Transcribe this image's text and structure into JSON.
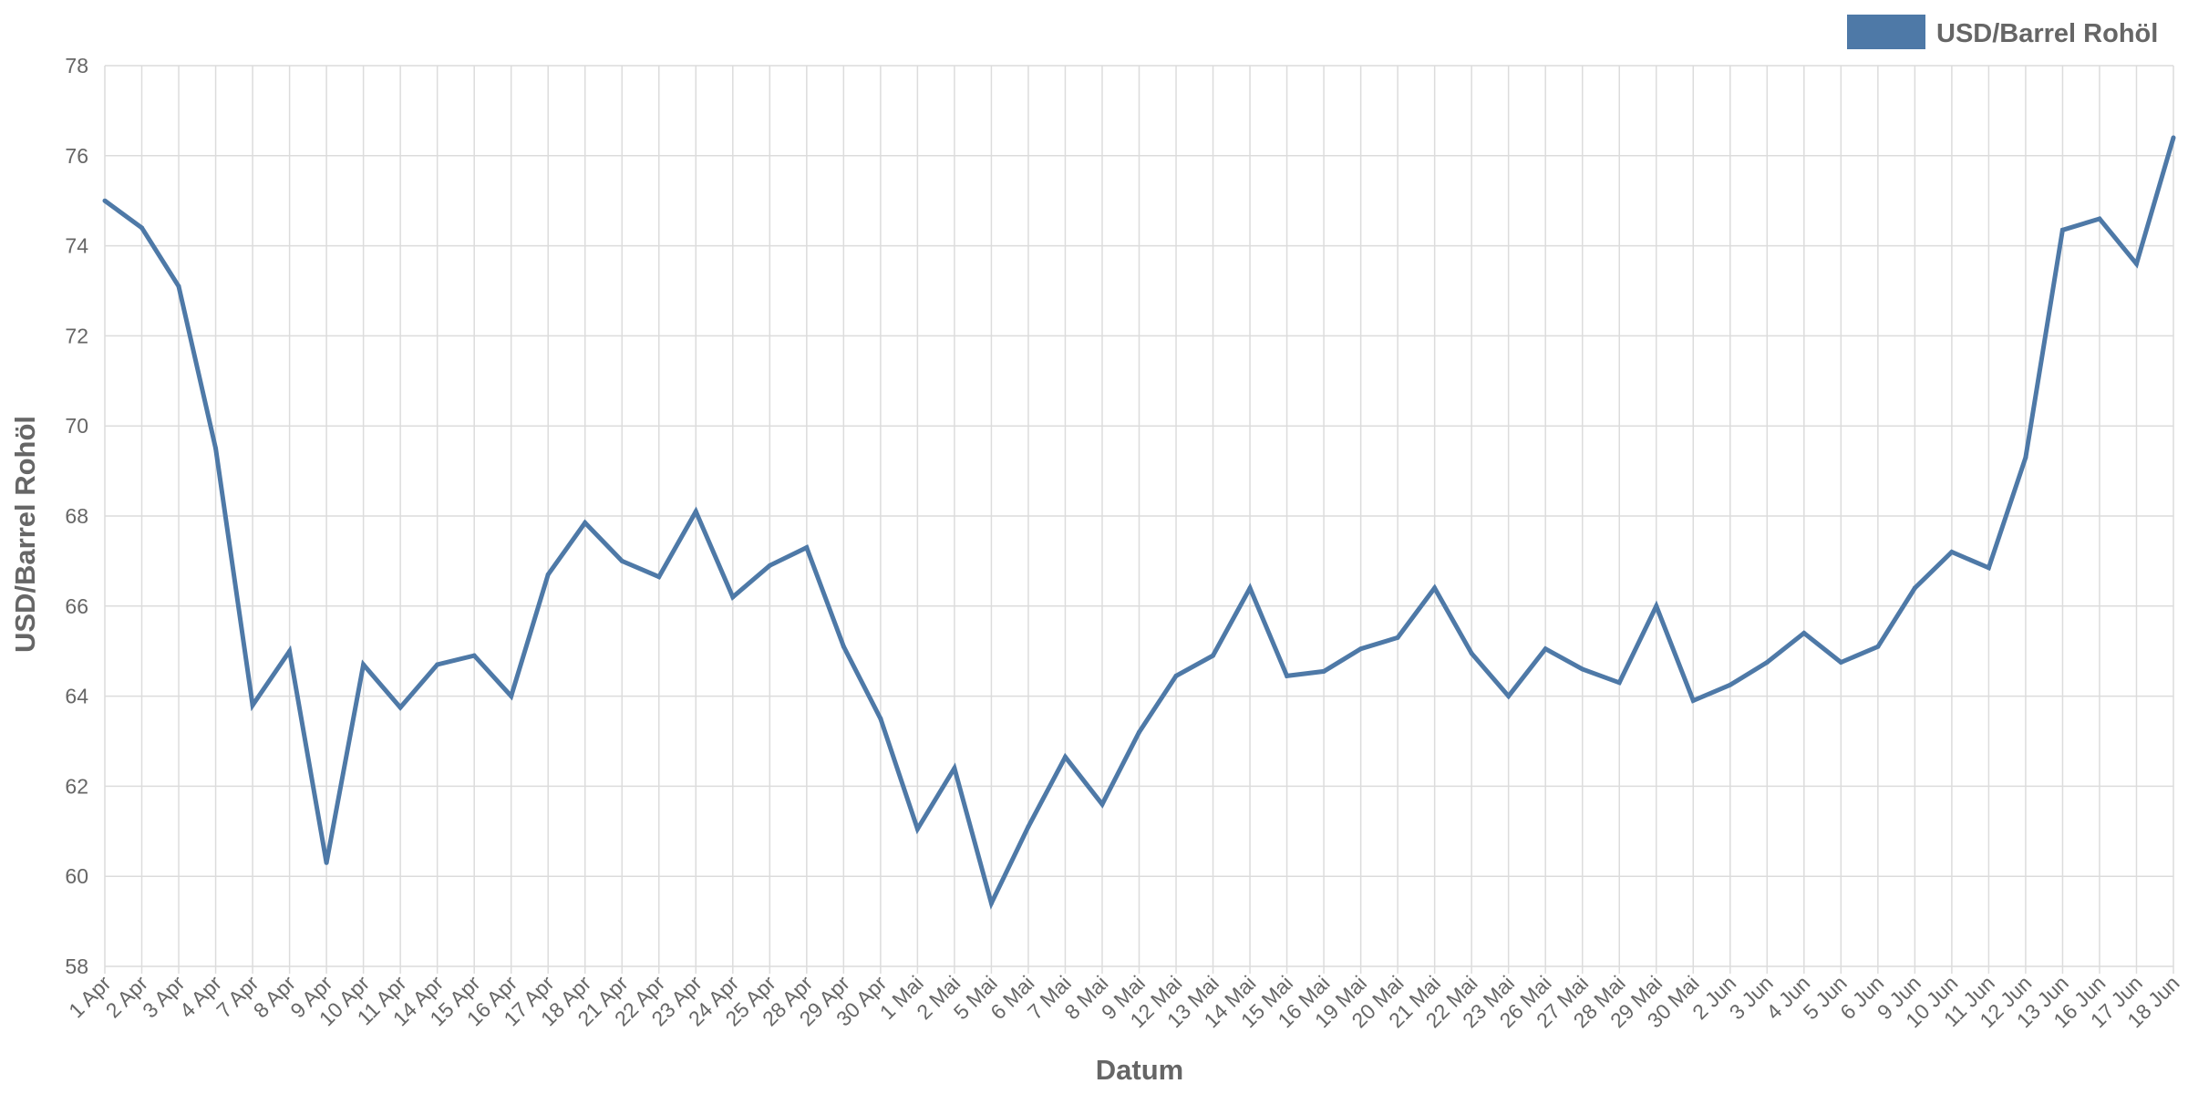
{
  "chart_data": {
    "type": "line",
    "xlabel": "Datum",
    "ylabel": "USD/Barrel Rohöl",
    "ylim": [
      58,
      78
    ],
    "yticks": [
      58,
      60,
      62,
      64,
      66,
      68,
      70,
      72,
      74,
      76,
      78
    ],
    "grid": true,
    "legend_placement": "top-right",
    "categories": [
      "1 Apr",
      "2 Apr",
      "3 Apr",
      "4 Apr",
      "7 Apr",
      "8 Apr",
      "9 Apr",
      "10 Apr",
      "11 Apr",
      "14 Apr",
      "15 Apr",
      "16 Apr",
      "17 Apr",
      "18 Apr",
      "21 Apr",
      "22 Apr",
      "23 Apr",
      "24 Apr",
      "25 Apr",
      "28 Apr",
      "29 Apr",
      "30 Apr",
      "1 Mai",
      "2 Mai",
      "5 Mai",
      "6 Mai",
      "7 Mai",
      "8 Mai",
      "9 Mai",
      "12 Mai",
      "13 Mai",
      "14 Mai",
      "15 Mai",
      "16 Mai",
      "19 Mai",
      "20 Mai",
      "21 Mai",
      "22 Mai",
      "23 Mai",
      "26 Mai",
      "27 Mai",
      "28 Mai",
      "29 Mai",
      "30 Mai",
      "2 Jun",
      "3 Jun",
      "4 Jun",
      "5 Jun",
      "6 Jun",
      "9 Jun",
      "10 Jun",
      "11 Jun",
      "12 Jun",
      "13 Jun",
      "16 Jun",
      "17 Jun",
      "18 Jun"
    ],
    "series": [
      {
        "name": "USD/Barrel Rohöl",
        "color": "#4e79a7",
        "values": [
          75.0,
          74.4,
          73.1,
          69.5,
          63.8,
          65.0,
          60.3,
          64.7,
          63.75,
          64.7,
          64.9,
          64.0,
          66.7,
          67.85,
          67.0,
          66.65,
          68.1,
          66.2,
          66.9,
          67.3,
          65.1,
          63.5,
          61.05,
          62.4,
          59.4,
          61.1,
          62.65,
          61.6,
          63.2,
          64.45,
          64.9,
          66.4,
          64.45,
          64.55,
          65.05,
          65.3,
          66.4,
          64.95,
          64.0,
          65.05,
          64.6,
          64.3,
          66.0,
          63.9,
          64.25,
          64.75,
          65.4,
          64.75,
          65.1,
          66.4,
          67.2,
          66.85,
          69.3,
          74.35,
          74.6,
          73.6,
          76.4
        ]
      }
    ]
  }
}
